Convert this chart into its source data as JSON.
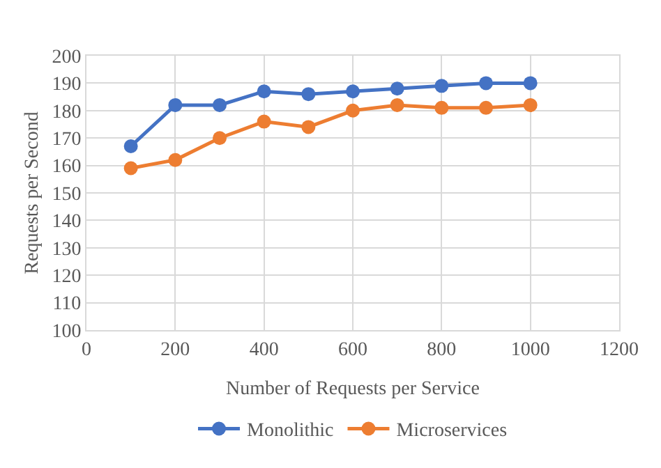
{
  "chart_data": {
    "type": "line",
    "xlabel": "Number of Requests per Service",
    "ylabel": "Requests per Second",
    "x": [
      100,
      200,
      300,
      400,
      500,
      600,
      700,
      800,
      900,
      1000
    ],
    "series": [
      {
        "name": "Monolithic",
        "color": "#4472c4",
        "values": [
          167,
          182,
          182,
          187,
          186,
          187,
          188,
          189,
          190,
          190
        ]
      },
      {
        "name": "Microservices",
        "color": "#ed7d31",
        "values": [
          159,
          162,
          170,
          176,
          174,
          180,
          182,
          181,
          181,
          182
        ]
      }
    ],
    "xlim": [
      0,
      1200
    ],
    "xticks": [
      0,
      200,
      400,
      600,
      800,
      1000,
      1200
    ],
    "ylim": [
      100,
      200
    ],
    "yticks": [
      100,
      110,
      120,
      130,
      140,
      150,
      160,
      170,
      180,
      190,
      200
    ],
    "grid": true,
    "legend": "bottom",
    "marker": "circle",
    "line_style": "solid"
  }
}
